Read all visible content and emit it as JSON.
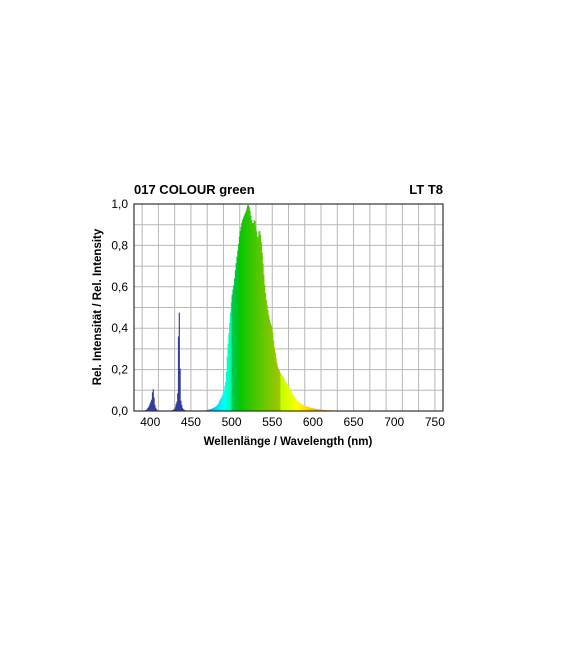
{
  "chart_data": {
    "type": "area",
    "title": "017 COLOUR green",
    "subtitle": "LT T8",
    "xlabel": "Wellenlänge / Wavelength (nm)",
    "ylabel": "Rel. Intensität / Rel. Intensity",
    "xlim": [
      380,
      760
    ],
    "ylim": [
      0,
      1.0
    ],
    "x_ticks": [
      400,
      450,
      500,
      550,
      600,
      650,
      700,
      750
    ],
    "y_ticks": [
      "0,0",
      "0,2",
      "0,4",
      "0,6",
      "0,8",
      "1,0"
    ],
    "grid": true,
    "series": [
      {
        "x": [
          380,
          385,
          390,
          395,
          398,
          400,
          402,
          403,
          404,
          405,
          406,
          408,
          410,
          412,
          415,
          420,
          425,
          430,
          432,
          433,
          434,
          435,
          436,
          437,
          438,
          439,
          440,
          442,
          445,
          450,
          455,
          460,
          465,
          470,
          475,
          480,
          483,
          485,
          488,
          490,
          493,
          495,
          498,
          500,
          503,
          505,
          508,
          510,
          513,
          515,
          518,
          520,
          522,
          524,
          526,
          528,
          530,
          532,
          534,
          536,
          538,
          540,
          542,
          544,
          546,
          548,
          550,
          552,
          554,
          556,
          558,
          560,
          563,
          565,
          568,
          570,
          573,
          575,
          578,
          580,
          585,
          590,
          595,
          600,
          605,
          610,
          615,
          620,
          630,
          640,
          650,
          660,
          670,
          680,
          700,
          720,
          740,
          760
        ],
        "y": [
          0.0,
          0.0,
          0.0,
          0.005,
          0.02,
          0.04,
          0.06,
          0.12,
          0.09,
          0.04,
          0.02,
          0.005,
          0.0,
          0.0,
          0.0,
          0.0,
          0.0,
          0.01,
          0.04,
          0.05,
          0.12,
          0.6,
          0.35,
          0.06,
          0.04,
          0.02,
          0.01,
          0.005,
          0.0,
          0.0,
          0.0,
          0.0,
          0.0,
          0.005,
          0.01,
          0.02,
          0.03,
          0.05,
          0.07,
          0.09,
          0.15,
          0.3,
          0.45,
          0.55,
          0.62,
          0.7,
          0.79,
          0.86,
          0.92,
          0.94,
          0.97,
          1.0,
          0.98,
          0.93,
          0.9,
          0.93,
          0.88,
          0.83,
          0.88,
          0.84,
          0.74,
          0.63,
          0.55,
          0.5,
          0.45,
          0.42,
          0.4,
          0.32,
          0.27,
          0.22,
          0.2,
          0.18,
          0.17,
          0.15,
          0.13,
          0.12,
          0.1,
          0.08,
          0.065,
          0.05,
          0.035,
          0.025,
          0.018,
          0.013,
          0.009,
          0.006,
          0.004,
          0.003,
          0.002,
          0.001,
          0.0005,
          0.0003,
          0.0002,
          0.0001,
          0.0,
          0.0,
          0.0,
          0.0
        ]
      }
    ]
  }
}
